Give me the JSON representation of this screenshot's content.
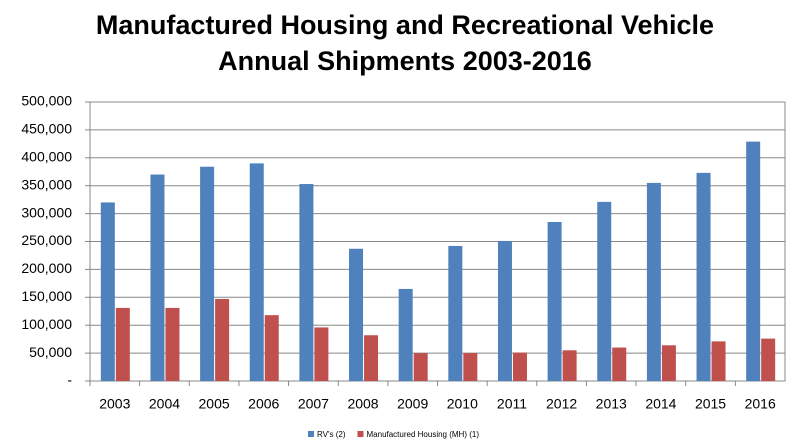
{
  "chart_data": {
    "type": "bar",
    "title": [
      "Manufactured Housing and Recreational Vehicle",
      "Annual Shipments 2003-2016"
    ],
    "categories": [
      "2003",
      "2004",
      "2005",
      "2006",
      "2007",
      "2008",
      "2009",
      "2010",
      "2011",
      "2012",
      "2013",
      "2014",
      "2015",
      "2016"
    ],
    "series": [
      {
        "name": "RV's (2)",
        "color": "#4f81bd",
        "values": [
          320000,
          370000,
          384000,
          390000,
          353000,
          237000,
          165000,
          242000,
          251000,
          285000,
          321000,
          355000,
          373000,
          429000
        ]
      },
      {
        "name": "Manufactured Housing (MH) (1)",
        "color": "#c0504d",
        "values": [
          131000,
          131000,
          147000,
          118000,
          96000,
          82000,
          50000,
          50000,
          51000,
          55000,
          60000,
          64000,
          71000,
          76000
        ]
      }
    ],
    "ylim": [
      0,
      500000
    ],
    "yticks": [
      {
        "value": 0,
        "label": "-"
      },
      {
        "value": 50000,
        "label": "50,000"
      },
      {
        "value": 100000,
        "label": "100,000"
      },
      {
        "value": 150000,
        "label": "150,000"
      },
      {
        "value": 200000,
        "label": "200,000"
      },
      {
        "value": 250000,
        "label": "250,000"
      },
      {
        "value": 300000,
        "label": "300,000"
      },
      {
        "value": 350000,
        "label": "350,000"
      },
      {
        "value": 400000,
        "label": "400,000"
      },
      {
        "value": 450000,
        "label": "450,000"
      },
      {
        "value": 500000,
        "label": "500,000"
      }
    ],
    "grid": true,
    "legend": "bottom"
  }
}
